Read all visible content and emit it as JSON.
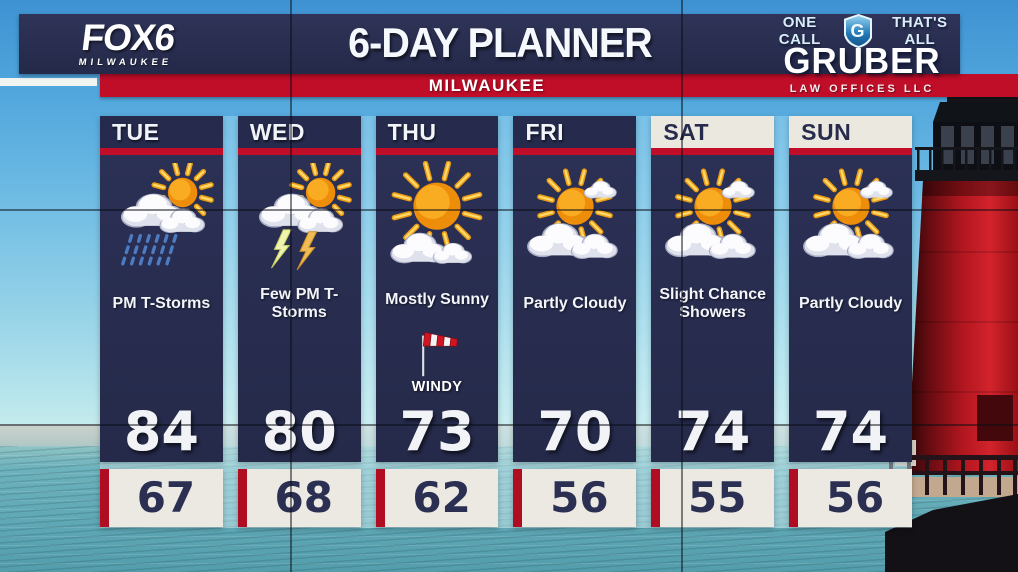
{
  "header": {
    "station": {
      "name": "FOX6",
      "city": "MILWAUKEE"
    },
    "title": "6-DAY PLANNER",
    "location": "MILWAUKEE",
    "sponsor": {
      "tagline_left": "ONE CALL",
      "tagline_right": "THAT'S ALL",
      "logo_letter": "G",
      "name": "GRUBER",
      "subtitle": "LAW OFFICES LLC"
    }
  },
  "forecast": {
    "days": [
      {
        "day": "TUE",
        "condition": "PM T-Storms",
        "icon": "storm-sun",
        "high": "84",
        "low": "67",
        "weekend": false,
        "windy": false
      },
      {
        "day": "WED",
        "condition": "Few PM T-Storms",
        "icon": "lightning-sun",
        "high": "80",
        "low": "68",
        "weekend": false,
        "windy": false
      },
      {
        "day": "THU",
        "condition": "Mostly Sunny",
        "icon": "mostly-sunny",
        "high": "73",
        "low": "62",
        "weekend": false,
        "windy": true,
        "windy_label": "WINDY"
      },
      {
        "day": "FRI",
        "condition": "Partly Cloudy",
        "icon": "partly-cloudy",
        "high": "70",
        "low": "56",
        "weekend": false,
        "windy": false
      },
      {
        "day": "SAT",
        "condition": "Slight Chance Showers",
        "icon": "partly-cloudy",
        "high": "74",
        "low": "55",
        "weekend": true,
        "windy": false
      },
      {
        "day": "SUN",
        "condition": "Partly Cloudy",
        "icon": "partly-cloudy",
        "high": "74",
        "low": "56",
        "weekend": true,
        "windy": false
      }
    ]
  },
  "chart_data": {
    "type": "table",
    "title": "6-DAY PLANNER",
    "subtitle": "MILWAUKEE",
    "columns": [
      "TUE",
      "WED",
      "THU",
      "FRI",
      "SAT",
      "SUN"
    ],
    "rows": [
      {
        "label": "condition",
        "values": [
          "PM T-Storms",
          "Few PM T-Storms",
          "Mostly Sunny",
          "Partly Cloudy",
          "Slight Chance Showers",
          "Partly Cloudy"
        ]
      },
      {
        "label": "high_f",
        "values": [
          84,
          80,
          73,
          70,
          74,
          74
        ]
      },
      {
        "label": "low_f",
        "values": [
          67,
          68,
          62,
          56,
          55,
          56
        ]
      }
    ],
    "annotations": [
      "WINDY on THU"
    ]
  },
  "colors": {
    "navy": "#272c4e",
    "red": "#c00d28",
    "cream": "#ece9e2",
    "sky_top": "#3f92d2",
    "sky_bottom": "#d5f0ee",
    "water": "#61a9b6",
    "lighthouse_red": "#c21722",
    "sun_orange": "#f9ac22",
    "rain_blue": "#4d7cc2"
  }
}
